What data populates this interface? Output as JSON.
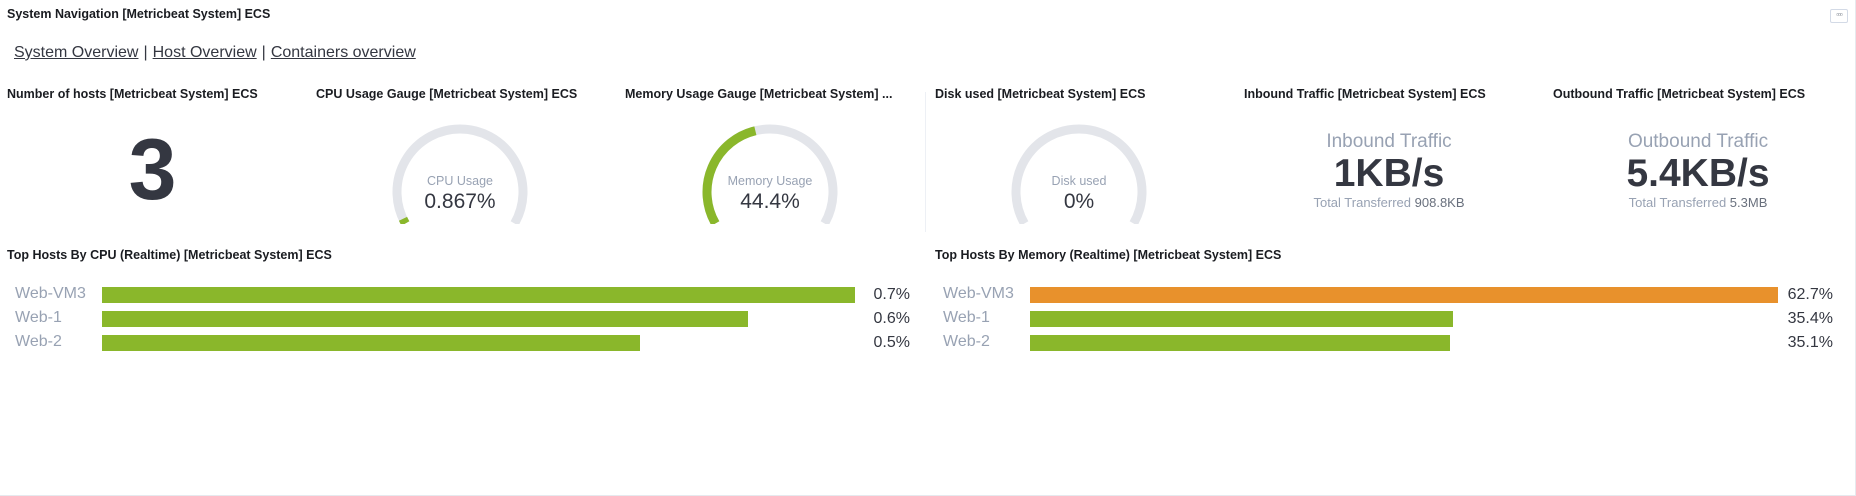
{
  "panel_titles": {
    "system_navigation": "System Navigation [Metricbeat System] ECS",
    "hosts": "Number of hosts [Metricbeat System] ECS",
    "cpu_gauge": "CPU Usage Gauge [Metricbeat System] ECS",
    "mem_gauge": "Memory Usage Gauge [Metricbeat System] ...",
    "disk": "Disk used [Metricbeat System] ECS",
    "inbound": "Inbound Traffic [Metricbeat System] ECS",
    "outbound": "Outbound Traffic [Metricbeat System] ECS",
    "top_cpu": "Top Hosts By CPU (Realtime) [Metricbeat System] ECS",
    "top_mem": "Top Hosts By Memory (Realtime) [Metricbeat System] ECS"
  },
  "menu_icon": "▫▫▫",
  "nav": {
    "links": [
      "System Overview",
      "Host Overview",
      "Containers overview"
    ],
    "separator": "|"
  },
  "hosts_count": "3",
  "gauges": {
    "cpu": {
      "label": "CPU Usage",
      "value": "0.867%",
      "fraction": 0.00867,
      "color": "#8ab72b"
    },
    "memory": {
      "label": "Memory Usage",
      "value": "44.4%",
      "fraction": 0.444,
      "color": "#8ab72b"
    },
    "disk": {
      "label": "Disk used",
      "value": "0%",
      "fraction": 0.0,
      "color": "#8ab72b"
    }
  },
  "inbound": {
    "label": "Inbound Traffic",
    "value": "1KB/s",
    "sub_label": "Total Transferred",
    "sub_value": "908.8KB"
  },
  "outbound": {
    "label": "Outbound Traffic",
    "value": "5.4KB/s",
    "sub_label": "Total Transferred",
    "sub_value": "5.3MB"
  },
  "top_cpu": {
    "rows": [
      {
        "host": "Web-VM3",
        "value": "0.7%",
        "fraction": 1.0,
        "color": "#8ab72b"
      },
      {
        "host": "Web-1",
        "value": "0.6%",
        "fraction": 0.858,
        "color": "#8ab72b"
      },
      {
        "host": "Web-2",
        "value": "0.5%",
        "fraction": 0.715,
        "color": "#8ab72b"
      }
    ]
  },
  "top_mem": {
    "rows": [
      {
        "host": "Web-VM3",
        "value": "62.7%",
        "fraction": 1.0,
        "color": "#e8912c"
      },
      {
        "host": "Web-1",
        "value": "35.4%",
        "fraction": 0.565,
        "color": "#8ab72b"
      },
      {
        "host": "Web-2",
        "value": "35.1%",
        "fraction": 0.561,
        "color": "#8ab72b"
      }
    ]
  },
  "colors": {
    "gauge_track": "#e3e5ea",
    "accent_green": "#8ab72b",
    "accent_orange": "#e8912c"
  }
}
